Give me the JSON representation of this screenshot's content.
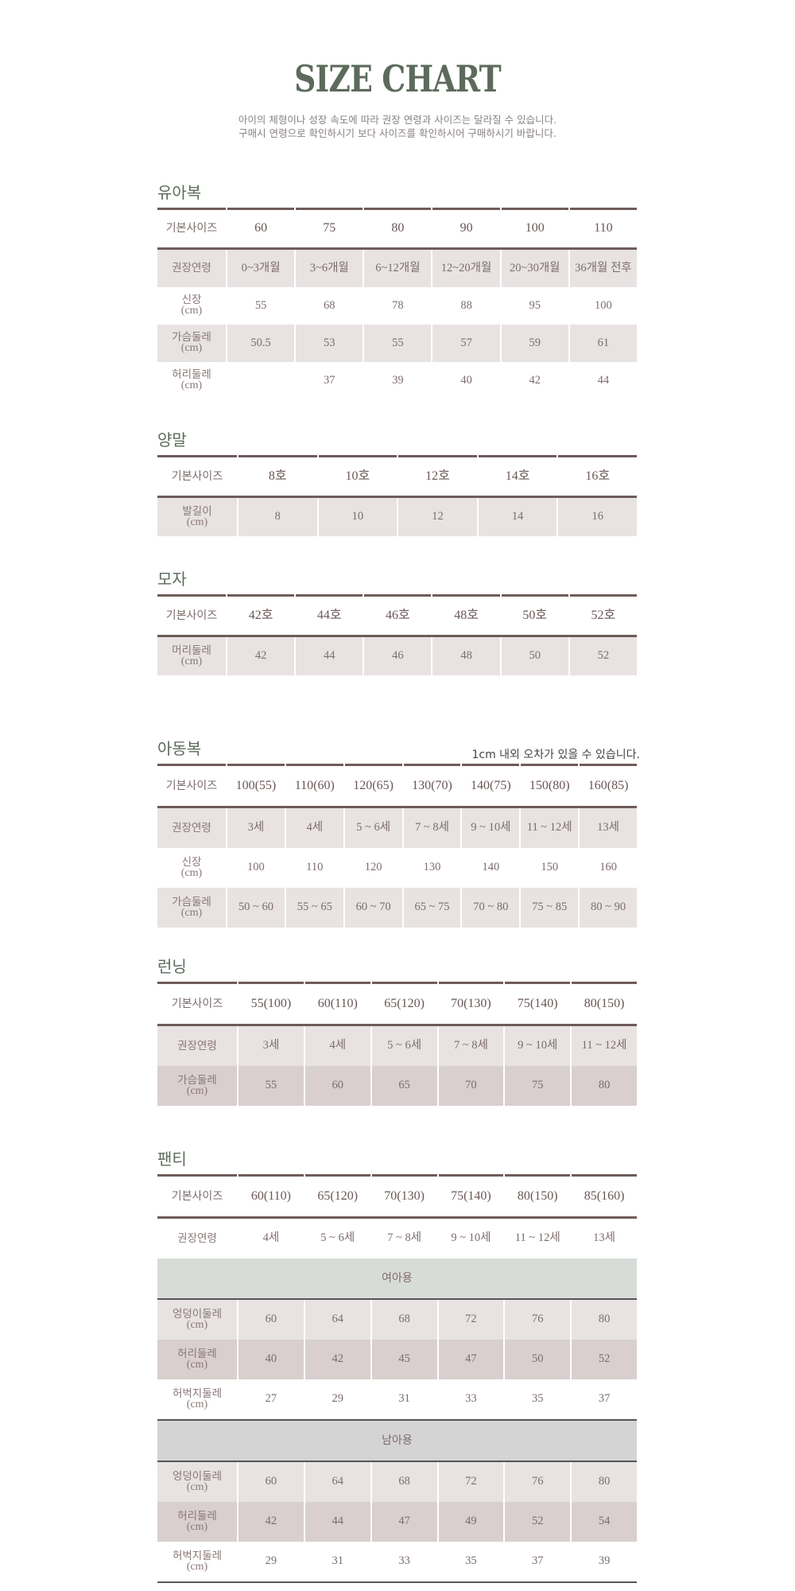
{
  "header": {
    "title": "SIZE CHART",
    "subtitle_lines": [
      "아이의 체형이나 성장 속도에 따라 권장 연령과 사이즈는 달라질 수 있습니다.",
      "구매시 연령으로 확인하시기 보다 사이즈를 확인하시어 구매하시기 바랍니다."
    ]
  },
  "colors": {
    "accent_title": "#5c6b5c",
    "rule": "#6f5b5b",
    "shade_light": "#e8e2e2",
    "shade_dark": "#d9cfcf",
    "band_girl": "#d8dcd8",
    "band_boy": "#d4d4d4"
  },
  "sections": [
    {
      "title": "유아복",
      "header_label": "기본사이즈",
      "columns": [
        "60",
        "75",
        "80",
        "90",
        "100",
        "110"
      ],
      "rows": [
        {
          "label": "권장연령",
          "values": [
            "0~3개월",
            "3~6개월",
            "6~12개월",
            "12~20개월",
            "20~30개월",
            "36개월 전후"
          ],
          "shade": "light"
        },
        {
          "label": "신장",
          "unit": "(cm)",
          "values": [
            "55",
            "68",
            "78",
            "88",
            "95",
            "100"
          ],
          "shade": "none"
        },
        {
          "label": "가슴둘레",
          "unit": "(cm)",
          "values": [
            "50.5",
            "53",
            "55",
            "57",
            "59",
            "61"
          ],
          "shade": "light"
        },
        {
          "label": "허리둘레",
          "unit": "(cm)",
          "values": [
            "",
            "37",
            "39",
            "40",
            "42",
            "44"
          ],
          "shade": "none"
        }
      ]
    },
    {
      "title": "양말",
      "header_label": "기본사이즈",
      "columns": [
        "8호",
        "10호",
        "12호",
        "14호",
        "16호"
      ],
      "rows": [
        {
          "label": "발길이",
          "unit": "(cm)",
          "values": [
            "8",
            "10",
            "12",
            "14",
            "16"
          ],
          "shade": "light"
        }
      ]
    },
    {
      "title": "모자",
      "header_label": "기본사이즈",
      "columns": [
        "42호",
        "44호",
        "46호",
        "48호",
        "50호",
        "52호"
      ],
      "rows": [
        {
          "label": "머리둘레",
          "unit": "(cm)",
          "values": [
            "42",
            "44",
            "46",
            "48",
            "50",
            "52"
          ],
          "shade": "light"
        }
      ]
    },
    {
      "title": "아동복",
      "note": "1cm 내외 오차가 있을 수 있습니다.",
      "header_label": "기본사이즈",
      "columns": [
        "100(55)",
        "110(60)",
        "120(65)",
        "130(70)",
        "140(75)",
        "150(80)",
        "160(85)"
      ],
      "rows": [
        {
          "label": "권장연령",
          "values": [
            "3세",
            "4세",
            "5 ~ 6세",
            "7 ~ 8세",
            "9 ~ 10세",
            "11 ~ 12세",
            "13세"
          ],
          "shade": "light"
        },
        {
          "label": "신장",
          "unit": "(cm)",
          "values": [
            "100",
            "110",
            "120",
            "130",
            "140",
            "150",
            "160"
          ],
          "shade": "none"
        },
        {
          "label": "가슴둘레",
          "unit": "(cm)",
          "values": [
            "50 ~ 60",
            "55 ~ 65",
            "60 ~ 70",
            "65 ~ 75",
            "70 ~ 80",
            "75 ~ 85",
            "80 ~ 90"
          ],
          "shade": "light"
        }
      ]
    },
    {
      "title": "런닝",
      "header_label": "기본사이즈",
      "columns": [
        "55(100)",
        "60(110)",
        "65(120)",
        "70(130)",
        "75(140)",
        "80(150)"
      ],
      "rows": [
        {
          "label": "권장연령",
          "values": [
            "3세",
            "4세",
            "5 ~ 6세",
            "7 ~ 8세",
            "9 ~ 10세",
            "11 ~ 12세"
          ],
          "shade": "light"
        },
        {
          "label": "가슴둘레",
          "unit": "(cm)",
          "values": [
            "55",
            "60",
            "65",
            "70",
            "75",
            "80"
          ],
          "shade": "dark"
        }
      ]
    },
    {
      "title": "팬티",
      "header_label": "기본사이즈",
      "columns": [
        "60(110)",
        "65(120)",
        "70(130)",
        "75(140)",
        "80(150)",
        "85(160)"
      ],
      "rows": [
        {
          "label": "권장연령",
          "values": [
            "4세",
            "5 ~ 6세",
            "7 ~ 8세",
            "9 ~ 10세",
            "11 ~ 12세",
            "13세"
          ],
          "shade": "none"
        },
        {
          "band": "여아용",
          "color": "#d8dcd8"
        },
        {
          "label": "엉덩이둘레",
          "unit": "(cm)",
          "values": [
            "60",
            "64",
            "68",
            "72",
            "76",
            "80"
          ],
          "shade": "light"
        },
        {
          "label": "허리둘레",
          "unit": "(cm)",
          "values": [
            "40",
            "42",
            "45",
            "47",
            "50",
            "52"
          ],
          "shade": "dark"
        },
        {
          "label": "허벅지둘레",
          "unit": "(cm)",
          "values": [
            "27",
            "29",
            "31",
            "33",
            "35",
            "37"
          ],
          "shade": "none"
        },
        {
          "band": "남아용",
          "color": "#d4d4d4"
        },
        {
          "label": "엉덩이둘레",
          "unit": "(cm)",
          "values": [
            "60",
            "64",
            "68",
            "72",
            "76",
            "80"
          ],
          "shade": "light"
        },
        {
          "label": "허리둘레",
          "unit": "(cm)",
          "values": [
            "42",
            "44",
            "47",
            "49",
            "52",
            "54"
          ],
          "shade": "dark"
        },
        {
          "label": "허벅지둘레",
          "unit": "(cm)",
          "values": [
            "29",
            "31",
            "33",
            "35",
            "37",
            "39"
          ],
          "shade": "none"
        }
      ]
    }
  ]
}
